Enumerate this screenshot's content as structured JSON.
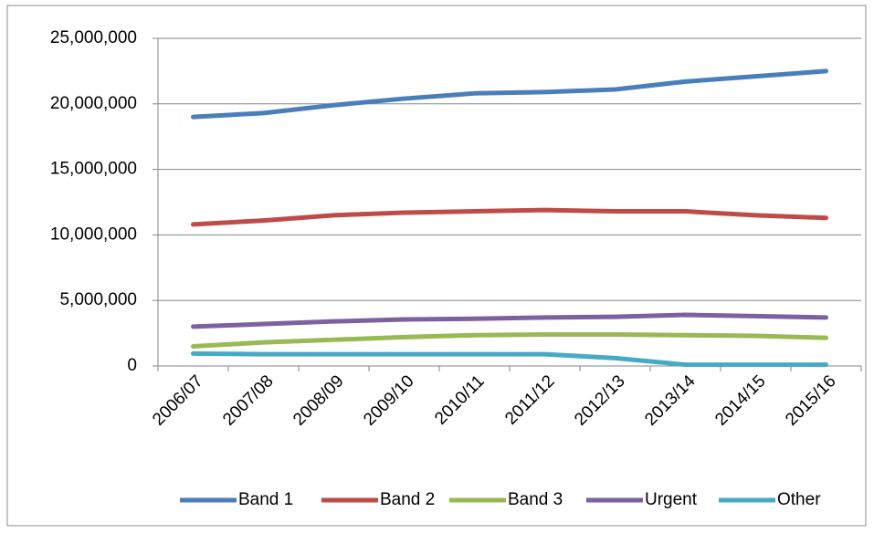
{
  "chart_data": {
    "type": "line",
    "categories": [
      "2006/07",
      "2007/08",
      "2008/09",
      "2009/10",
      "2010/11",
      "2011/12",
      "2012/13",
      "2013/14",
      "2014/15",
      "2015/16"
    ],
    "series": [
      {
        "name": "Band 1",
        "color": "#4a7ebb",
        "values": [
          19000000,
          19300000,
          19900000,
          20400000,
          20800000,
          20900000,
          21100000,
          21700000,
          22100000,
          22500000
        ]
      },
      {
        "name": "Band 2",
        "color": "#be4b48",
        "values": [
          10800000,
          11100000,
          11500000,
          11700000,
          11800000,
          11900000,
          11800000,
          11800000,
          11500000,
          11300000
        ]
      },
      {
        "name": "Band 3",
        "color": "#98b954",
        "values": [
          1500000,
          1800000,
          2000000,
          2200000,
          2350000,
          2400000,
          2400000,
          2350000,
          2300000,
          2150000
        ]
      },
      {
        "name": "Urgent",
        "color": "#7d60a0",
        "values": [
          3000000,
          3200000,
          3400000,
          3550000,
          3600000,
          3700000,
          3750000,
          3900000,
          3800000,
          3700000
        ]
      },
      {
        "name": "Other",
        "color": "#46aac5",
        "values": [
          950000,
          900000,
          900000,
          900000,
          900000,
          900000,
          600000,
          100000,
          100000,
          100000
        ]
      }
    ],
    "ylim": [
      0,
      25000000
    ],
    "yticks": [
      0,
      {
        "value": 5000000,
        "label": "5,000,000"
      },
      {
        "value": 10000000,
        "label": "10,000,000"
      },
      {
        "value": 15000000,
        "label": "15,000,000"
      },
      {
        "value": 20000000,
        "label": "20,000,000"
      },
      {
        "value": 25000000,
        "label": "25,000,000"
      }
    ],
    "grid": true,
    "legend": "bottom"
  }
}
